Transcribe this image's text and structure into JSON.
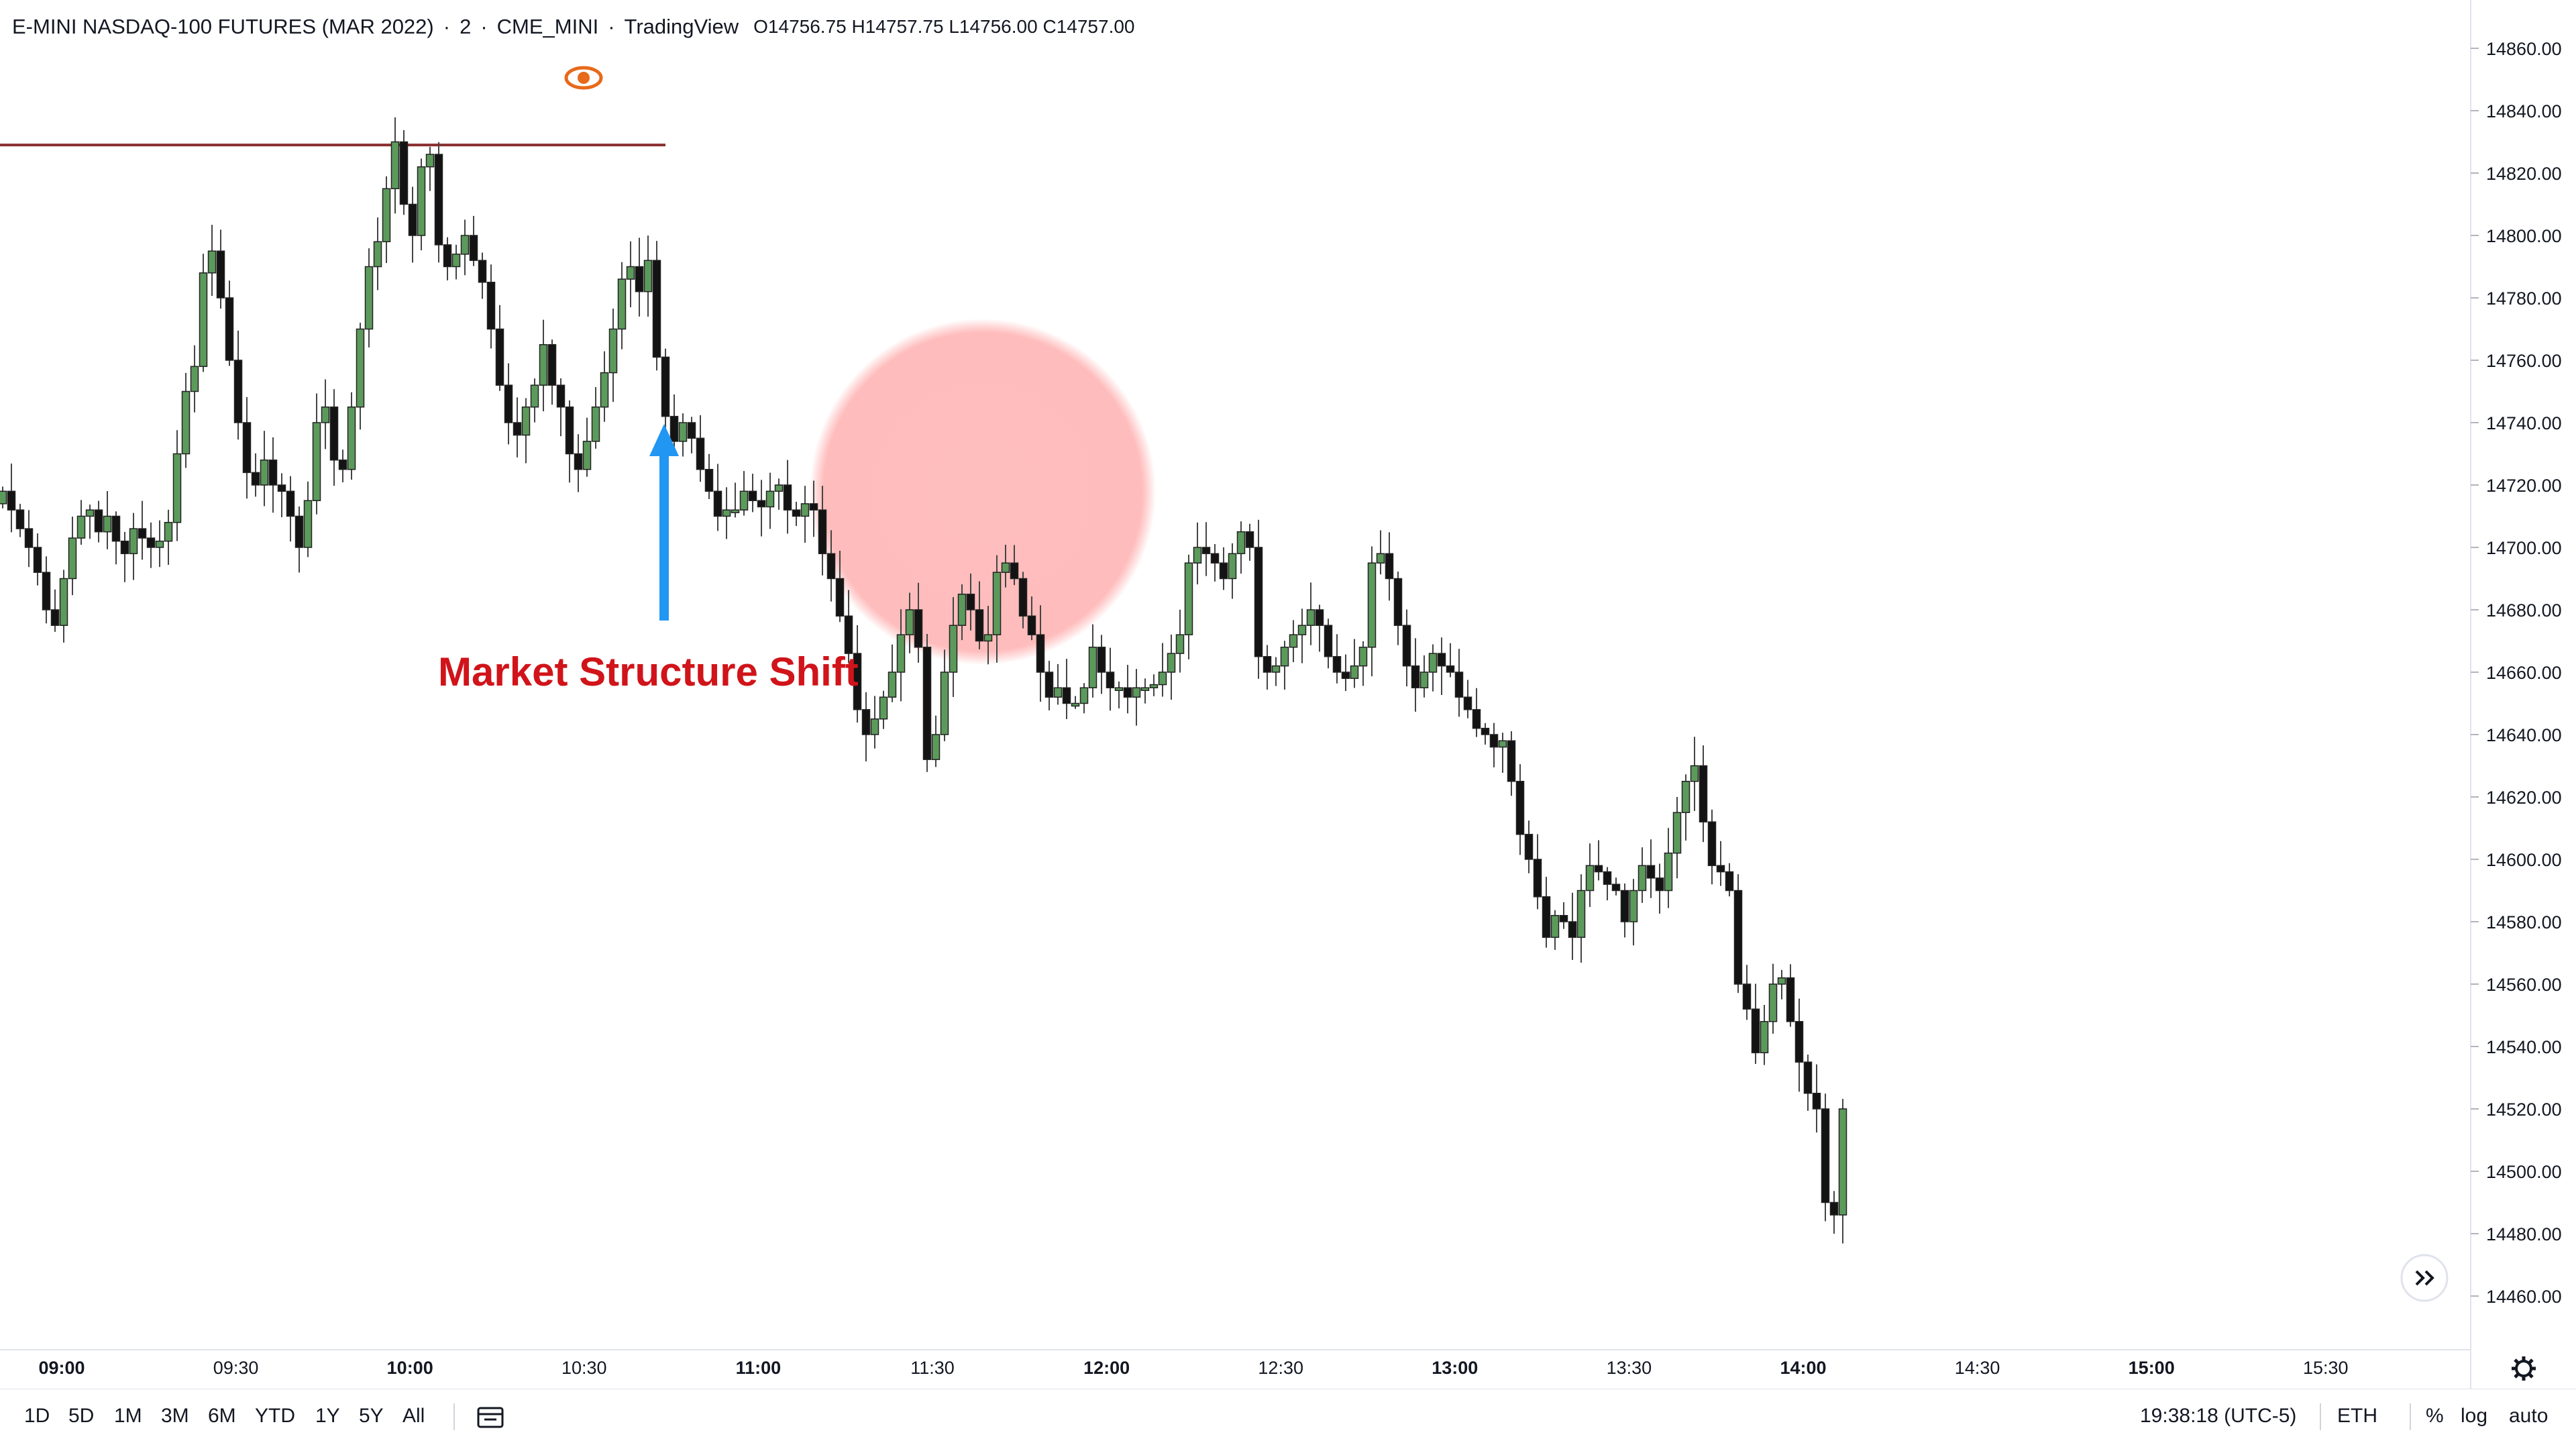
{
  "legend": {
    "symbol": "E-MINI NASDAQ-100 FUTURES (MAR 2022)",
    "interval": "2",
    "exchange": "CME_MINI",
    "source": "TradingView",
    "open_label": "O",
    "open": "14756.75",
    "high_label": "H",
    "high": "14757.75",
    "low_label": "L",
    "low": "14756.00",
    "close_label": "C",
    "close": "14757.00"
  },
  "annotation": {
    "text": "Market Structure Shift",
    "arrow_color": "#2196f3",
    "highlight_color": "#ff9a9a",
    "text_color": "#d0141a"
  },
  "toolbar": {
    "ranges": [
      "1D",
      "5D",
      "1M",
      "3M",
      "6M",
      "YTD",
      "1Y",
      "5Y",
      "All"
    ],
    "clock": "19:38:18 (UTC-5)",
    "session": "ETH",
    "percent": "%",
    "log": "log",
    "auto": "auto"
  },
  "icons": {
    "eye": "eye-icon",
    "compare": "date-range-icon",
    "scroll": "scroll-to-realtime-icon",
    "settings": "gear-icon"
  },
  "colors": {
    "up": "#5c9a5c",
    "down": "#131313",
    "hline": "#8b2e2e",
    "eye": "#e8691a"
  },
  "chart_data": {
    "type": "candlestick",
    "title": "E-MINI NASDAQ-100 FUTURES (MAR 2022)",
    "ylim": [
      14450,
      14866
    ],
    "price_ticks": [
      "14860.00",
      "14840.00",
      "14820.00",
      "14800.00",
      "14780.00",
      "14760.00",
      "14740.00",
      "14720.00",
      "14700.00",
      "14680.00",
      "14660.00",
      "14640.00",
      "14620.00",
      "14600.00",
      "14580.00",
      "14560.00",
      "14540.00",
      "14520.00",
      "14500.00",
      "14480.00",
      "14460.00"
    ],
    "time_ticks": [
      {
        "label": "09:00",
        "major": true
      },
      {
        "label": "09:30",
        "major": false
      },
      {
        "label": "10:00",
        "major": true
      },
      {
        "label": "10:30",
        "major": false
      },
      {
        "label": "11:00",
        "major": true
      },
      {
        "label": "11:30",
        "major": false
      },
      {
        "label": "12:00",
        "major": true
      },
      {
        "label": "12:30",
        "major": false
      },
      {
        "label": "13:00",
        "major": true
      },
      {
        "label": "13:30",
        "major": false
      },
      {
        "label": "14:00",
        "major": true
      },
      {
        "label": "14:30",
        "major": false
      },
      {
        "label": "15:00",
        "major": true
      },
      {
        "label": "15:30",
        "major": false
      }
    ],
    "horizontal_level": 14829,
    "candles_close": [
      14718,
      14712,
      14706,
      14700,
      14692,
      14680,
      14675,
      14690,
      14703,
      14710,
      14712,
      14705,
      14710,
      14702,
      14698,
      14706,
      14703,
      14700,
      14702,
      14708,
      14730,
      14750,
      14758,
      14788,
      14795,
      14780,
      14760,
      14740,
      14724,
      14720,
      14728,
      14720,
      14718,
      14710,
      14700,
      14715,
      14740,
      14745,
      14728,
      14725,
      14745,
      14770,
      14790,
      14798,
      14815,
      14830,
      14810,
      14800,
      14822,
      14826,
      14797,
      14790,
      14794,
      14800,
      14792,
      14785,
      14770,
      14752,
      14740,
      14736,
      14745,
      14752,
      14765,
      14752,
      14745,
      14730,
      14725,
      14734,
      14745,
      14756,
      14770,
      14786,
      14790,
      14782,
      14792,
      14761,
      14742,
      14734,
      14740,
      14735,
      14725,
      14718,
      14710,
      14712,
      14712,
      14718,
      14715,
      14713,
      14718,
      14720,
      14712,
      14710,
      14714,
      14712,
      14698,
      14690,
      14678,
      14666,
      14648,
      14640,
      14645,
      14652,
      14660,
      14672,
      14680,
      14668,
      14632,
      14640,
      14660,
      14675,
      14685,
      14680,
      14670,
      14672,
      14692,
      14695,
      14690,
      14678,
      14672,
      14660,
      14652,
      14655,
      14650,
      14650,
      14655,
      14668,
      14660,
      14655,
      14655,
      14652,
      14655,
      14655,
      14656,
      14660,
      14666,
      14672,
      14695,
      14700,
      14698,
      14695,
      14690,
      14698,
      14705,
      14700,
      14665,
      14660,
      14662,
      14668,
      14672,
      14675,
      14680,
      14675,
      14665,
      14660,
      14658,
      14662,
      14668,
      14695,
      14698,
      14690,
      14675,
      14662,
      14655,
      14660,
      14666,
      14662,
      14660,
      14652,
      14648,
      14642,
      14640,
      14636,
      14638,
      14625,
      14608,
      14600,
      14588,
      14575,
      14582,
      14580,
      14575,
      14590,
      14598,
      14596,
      14592,
      14590,
      14580,
      14590,
      14598,
      14594,
      14590,
      14602,
      14615,
      14625,
      14630,
      14612,
      14598,
      14596,
      14590,
      14560,
      14552,
      14538,
      14548,
      14560,
      14562,
      14548,
      14535,
      14525,
      14520,
      14490,
      14486,
      14520
    ]
  }
}
